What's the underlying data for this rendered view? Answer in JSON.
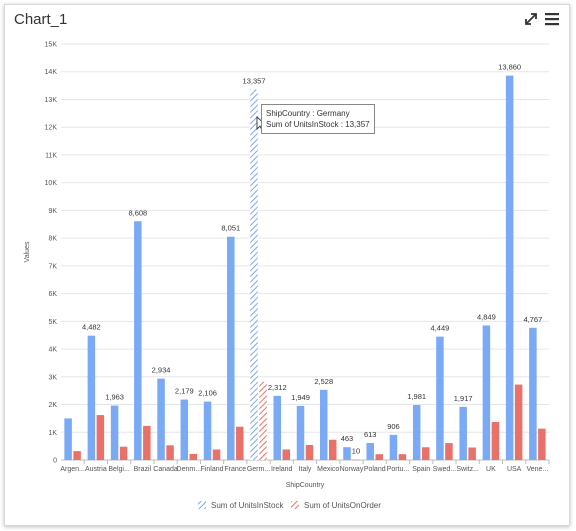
{
  "header": {
    "title": "Chart_1",
    "expand_icon": "expand-arrows-icon",
    "menu_icon": "hamburger-menu-icon"
  },
  "tooltip": {
    "line1": "ShipCountry : Germany",
    "line2": "Sum of UnitsInStock : 13,357"
  },
  "colors": {
    "series1": "#7aa9f6",
    "series2": "#e8726a",
    "grid": "#e6e6e6"
  },
  "chart_data": {
    "type": "bar",
    "xlabel": "ShipCountry",
    "ylabel": "Values",
    "ylim": [
      0,
      15000
    ],
    "yticks": [
      "0",
      "1K",
      "2K",
      "3K",
      "4K",
      "5K",
      "6K",
      "7K",
      "8K",
      "9K",
      "10K",
      "11K",
      "12K",
      "13K",
      "14K",
      "15K"
    ],
    "categories": [
      "Argen...",
      "Austria",
      "Belgi...",
      "Brazil",
      "Canada",
      "Denm...",
      "Finland",
      "France",
      "Germ...",
      "Ireland",
      "Italy",
      "Mexico",
      "Norway",
      "Poland",
      "Portu...",
      "Spain",
      "Swed...",
      "Switz...",
      "UK",
      "USA",
      "Vene..."
    ],
    "series": [
      {
        "name": "Sum of UnitsInStock",
        "values": [
          1500,
          4482,
          1963,
          8608,
          2934,
          2179,
          2106,
          8051,
          13357,
          2312,
          1949,
          2528,
          463,
          613,
          906,
          1981,
          4449,
          1917,
          4849,
          13860,
          4767
        ],
        "labels": [
          "",
          "4,482",
          "1,963",
          "8,608",
          "2,934",
          "2,179",
          "2,106",
          "8,051",
          "13,357",
          "2,312",
          "1,949",
          "2,528",
          "463",
          "613",
          "906",
          "1,981",
          "4,449",
          "1,917",
          "4,849",
          "13,860",
          "4,767"
        ]
      },
      {
        "name": "Sum of UnitsOnOrder",
        "values": [
          320,
          1620,
          480,
          1230,
          530,
          220,
          380,
          1200,
          2820,
          380,
          540,
          730,
          10,
          210,
          210,
          460,
          610,
          450,
          1370,
          2720,
          1130
        ],
        "labels": [
          "",
          "",
          "",
          "",
          "",
          "",
          "",
          "",
          "",
          "",
          "",
          "",
          "10",
          "",
          "",
          "",
          "",
          "",
          "",
          "",
          ""
        ]
      }
    ],
    "highlighted_category": "Germ...",
    "grid": true,
    "legend_position": "bottom"
  }
}
